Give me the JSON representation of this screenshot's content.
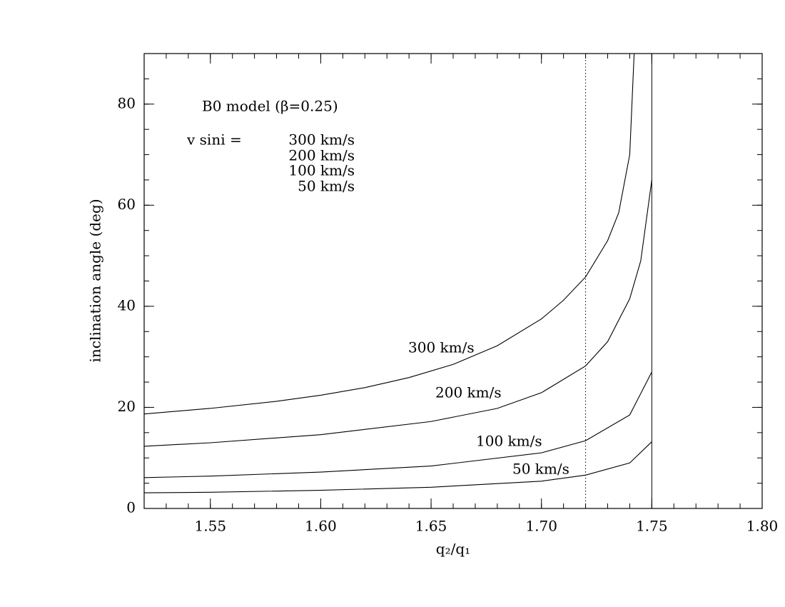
{
  "chart_data": {
    "type": "line",
    "annotation": "B0 model (β=0.25)",
    "legend_prefix": "v sini =",
    "xlabel": "q₂/q₁",
    "ylabel": "inclination angle (deg)",
    "xlim": [
      1.52,
      1.8
    ],
    "ylim": [
      0,
      90
    ],
    "xticks": [
      1.55,
      {
        "value": 1.6,
        "label": "1.60"
      },
      1.65,
      {
        "value": 1.7,
        "label": "1.70"
      },
      1.75,
      {
        "value": 1.8,
        "label": "1.80"
      }
    ],
    "yticks": [
      0,
      20,
      40,
      60,
      80
    ],
    "minor_xtick_step": 0.01,
    "minor_ytick_step": 5,
    "vlines": [
      {
        "x": 1.72,
        "style": "dotted"
      },
      {
        "x": 1.75,
        "style": "solid"
      }
    ],
    "series": [
      {
        "name": "300 km/s",
        "color": "#000000",
        "x": [
          1.52,
          1.55,
          1.58,
          1.6,
          1.62,
          1.64,
          1.66,
          1.68,
          1.7,
          1.71,
          1.72,
          1.73,
          1.735,
          1.74,
          1.742
        ],
        "values": [
          18.7,
          19.8,
          21.2,
          22.4,
          23.9,
          25.9,
          28.5,
          32.2,
          37.5,
          41.2,
          45.8,
          53,
          58.5,
          70,
          90
        ]
      },
      {
        "name": "200 km/s",
        "color": "#000000",
        "x": [
          1.52,
          1.55,
          1.6,
          1.65,
          1.68,
          1.7,
          1.72,
          1.73,
          1.74,
          1.745,
          1.75
        ],
        "values": [
          12.3,
          13.0,
          14.6,
          17.2,
          19.8,
          22.9,
          28.2,
          33,
          41.5,
          49,
          65
        ]
      },
      {
        "name": "100 km/s",
        "color": "#000000",
        "x": [
          1.52,
          1.55,
          1.6,
          1.65,
          1.7,
          1.72,
          1.74,
          1.75
        ],
        "values": [
          6.1,
          6.4,
          7.2,
          8.4,
          11.0,
          13.4,
          18.5,
          27
        ]
      },
      {
        "name": "50 km/s",
        "color": "#000000",
        "x": [
          1.52,
          1.55,
          1.6,
          1.65,
          1.7,
          1.72,
          1.74,
          1.75
        ],
        "values": [
          3.1,
          3.2,
          3.6,
          4.2,
          5.4,
          6.6,
          9.0,
          13.2
        ]
      }
    ]
  }
}
